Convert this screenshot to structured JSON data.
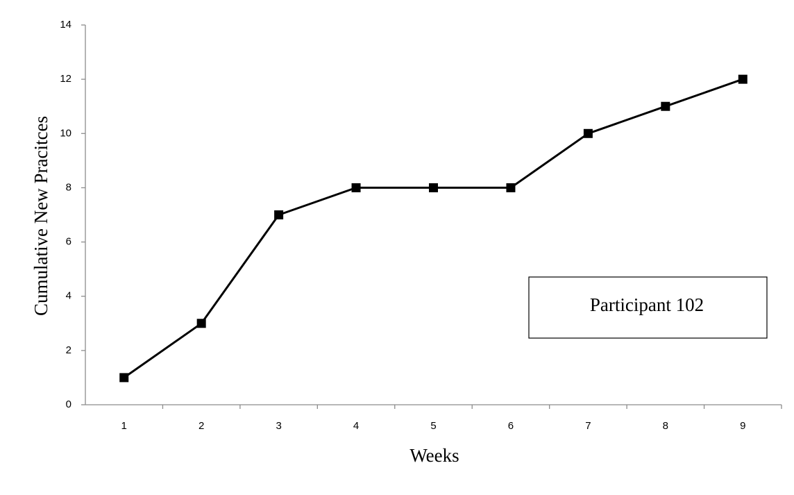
{
  "chart_data": {
    "type": "line",
    "title": "",
    "xlabel": "Weeks",
    "ylabel": "Cumulative New Pracitces",
    "x": [
      1,
      2,
      3,
      4,
      5,
      6,
      7,
      8,
      9
    ],
    "series": [
      {
        "values": [
          1,
          3,
          7,
          8,
          8,
          8,
          10,
          11,
          12
        ]
      }
    ],
    "xticks": [
      "1",
      "2",
      "3",
      "4",
      "5",
      "6",
      "7",
      "8",
      "9"
    ],
    "yticks": [
      0,
      2,
      4,
      6,
      8,
      10,
      12,
      14
    ],
    "ylim": [
      0,
      14
    ],
    "grid": false,
    "marker": "square",
    "line_color": "#000000",
    "annotation": "Participant 102"
  }
}
